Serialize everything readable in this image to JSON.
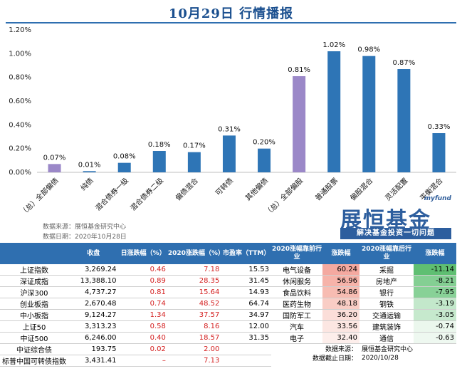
{
  "title": "10月29日 行情播报",
  "chart_data": {
    "type": "bar",
    "categories": [
      "（总）全部偏债",
      "纯债",
      "混合债券一级",
      "混合债券二级",
      "偏债混合",
      "可转债",
      "其他偏债",
      "（总）全部偏股",
      "普通股票",
      "偏股混合",
      "灵活配置",
      "平衡混合"
    ],
    "values": [
      0.07,
      0.01,
      0.08,
      0.18,
      0.17,
      0.31,
      0.2,
      0.81,
      1.02,
      0.98,
      0.87,
      0.33
    ],
    "value_labels": [
      "0.07%",
      "0.01%",
      "0.08%",
      "0.18%",
      "0.17%",
      "0.31%",
      "0.20%",
      "0.81%",
      "1.02%",
      "0.98%",
      "0.87%",
      "0.33%"
    ],
    "y_ticks": [
      "0.00%",
      "0.20%",
      "0.40%",
      "0.60%",
      "0.80%",
      "1.00%",
      "1.20%"
    ],
    "ylim": [
      0,
      1.2
    ],
    "colors": {
      "aggregate": "#9b88c8",
      "normal": "#2e75b6"
    },
    "aggregate_index": [
      0,
      7
    ]
  },
  "source": {
    "line1": "数据来源：展恒基金研究中心",
    "line2": "数据日期：2020年10月28日"
  },
  "brand": {
    "tag": "myfund",
    "name": "展恒基金",
    "slogan": "解决基金投资一切问题"
  },
  "left_table": {
    "headers": [
      "",
      "收盘",
      "日涨跌幅（%）",
      "2020涨跌幅（%）",
      "市盈率（TTM）"
    ],
    "rows": [
      {
        "name": "上证指数",
        "close": "3,269.24",
        "day": "0.46",
        "ytd": "7.18",
        "pe": "15.53"
      },
      {
        "name": "深证成指",
        "close": "13,388.10",
        "day": "0.89",
        "ytd": "28.35",
        "pe": "31.45"
      },
      {
        "name": "沪深300",
        "close": "4,737.27",
        "day": "0.81",
        "ytd": "15.64",
        "pe": "14.93"
      },
      {
        "name": "创业板指",
        "close": "2,670.48",
        "day": "0.74",
        "ytd": "48.52",
        "pe": "64.74"
      },
      {
        "name": "中小板指",
        "close": "9,124.27",
        "day": "1.34",
        "ytd": "37.57",
        "pe": "34.97"
      },
      {
        "name": "上证50",
        "close": "3,313.23",
        "day": "0.58",
        "ytd": "8.16",
        "pe": "12.00"
      },
      {
        "name": "中证500",
        "close": "6,246.00",
        "day": "0.40",
        "ytd": "18.57",
        "pe": "31.35"
      },
      {
        "name": "中证综合债",
        "close": "193.75",
        "day": "0.02",
        "ytd": "2.00",
        "pe": ""
      },
      {
        "name": "标普中国可转债指数",
        "close": "3,431.41",
        "day": "–",
        "ytd": "7.13",
        "pe": ""
      }
    ]
  },
  "right_table": {
    "headers": [
      "2020涨幅靠前行业",
      "涨跌幅",
      "2020涨幅靠后行业",
      "涨跌幅"
    ],
    "rows": [
      {
        "top": "电气设备",
        "top_v": "60.24",
        "bot": "采掘",
        "bot_v": "-11.14"
      },
      {
        "top": "休闲服务",
        "top_v": "56.96",
        "bot": "房地产",
        "bot_v": "-8.21"
      },
      {
        "top": "食品饮料",
        "top_v": "54.86",
        "bot": "银行",
        "bot_v": "-7.95"
      },
      {
        "top": "医药生物",
        "top_v": "48.18",
        "bot": "钢铁",
        "bot_v": "-3.19"
      },
      {
        "top": "国防军工",
        "top_v": "36.20",
        "bot": "交通运输",
        "bot_v": "-3.05"
      },
      {
        "top": "汽车",
        "top_v": "33.56",
        "bot": "建筑装饰",
        "bot_v": "-0.74"
      },
      {
        "top": "电子",
        "top_v": "32.40",
        "bot": "通信",
        "bot_v": "-0.63"
      }
    ],
    "foot": {
      "src_label": "数据来源：",
      "src_value": "展恒基金研究中心",
      "date_label": "数据截止日期：",
      "date_value": "2020/10/28"
    },
    "top_fill_colors": [
      "#f4a9a0",
      "#f6b3a9",
      "#f7bcb2",
      "#f9cdc5",
      "#fbded9",
      "#fce6e2",
      "#fdeeeb"
    ],
    "bot_fill_colors": [
      "#5fbf72",
      "#84cf93",
      "#88d197",
      "#c3e8cb",
      "#c6e9cd",
      "#ebf7ed",
      "#eef8f0"
    ]
  }
}
